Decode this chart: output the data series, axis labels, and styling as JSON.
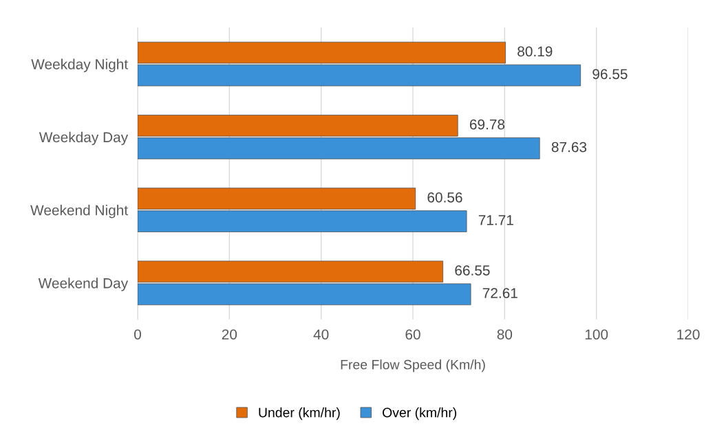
{
  "chart_data": {
    "type": "bar",
    "orientation": "horizontal",
    "xlabel": "Free Flow Speed (Km/h)",
    "categories": [
      "Weekday Night",
      "Weekday Day",
      "Weekend Night",
      "Weekend Day"
    ],
    "series": [
      {
        "name": "Under (km/hr)",
        "color": "#e36c0a",
        "values": [
          80.19,
          69.78,
          60.56,
          66.55
        ]
      },
      {
        "name": "Over (km/hr)",
        "color": "#3a91d8",
        "values": [
          96.55,
          87.63,
          71.71,
          72.61
        ]
      }
    ],
    "xlim": [
      0,
      120
    ],
    "xticks": [
      0,
      20,
      40,
      60,
      80,
      100,
      120
    ],
    "grid": "x",
    "legend": "bottom",
    "data_labels": true
  }
}
